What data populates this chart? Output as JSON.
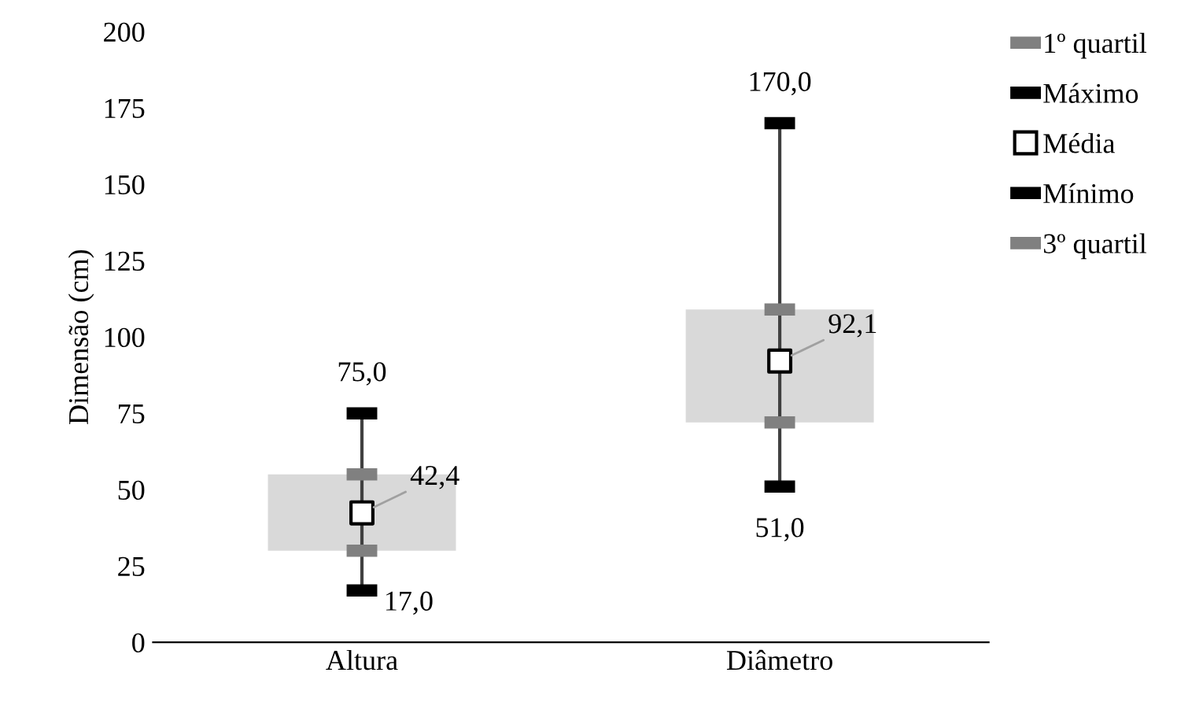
{
  "chart_data": {
    "type": "box",
    "ylabel": "Dimensão (cm)",
    "categories": [
      "Altura",
      "Diâmetro"
    ],
    "ylim": [
      0,
      200
    ],
    "yticks": [
      0,
      25,
      50,
      75,
      100,
      125,
      150,
      175,
      200
    ],
    "grid": false,
    "legend": "right",
    "series": [
      {
        "type": "box",
        "color": "#d9d9d9",
        "boxes": [
          {
            "low": 17,
            "q1": 30,
            "q3": 55,
            "high": 75
          },
          {
            "low": 51,
            "q1": 72,
            "q3": 109,
            "high": 170
          }
        ]
      },
      {
        "type": "scatter",
        "name": "1º quartil",
        "color": "#808080",
        "values": [
          30,
          72
        ]
      },
      {
        "type": "scatter",
        "name": "Máximo",
        "color": "#000000",
        "values": [
          75,
          170
        ],
        "value_labels": [
          "75,0",
          "170,0"
        ]
      },
      {
        "type": "scatter",
        "name": "Média",
        "color": "#000000",
        "marker": "square",
        "values": [
          42.4,
          92.1
        ],
        "value_labels": [
          "42,4",
          "92,1"
        ]
      },
      {
        "type": "scatter",
        "name": "Mínimo",
        "color": "#000000",
        "values": [
          17,
          51
        ],
        "value_labels": [
          "17,0",
          "51,0"
        ]
      },
      {
        "type": "scatter",
        "name": "3º quartil",
        "color": "#808080",
        "values": [
          55,
          109
        ]
      }
    ]
  }
}
